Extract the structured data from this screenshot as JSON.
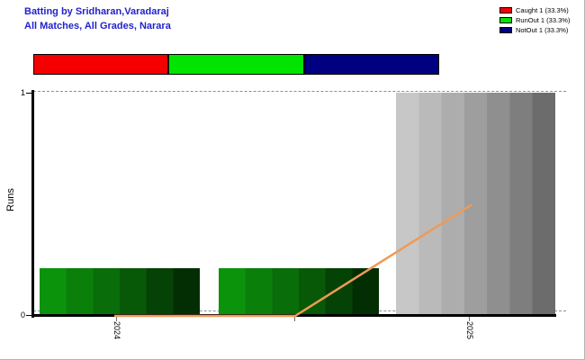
{
  "header": {
    "title_line1": "Batting by Sridharan,Varadaraj",
    "title_line2": "All Matches, All Grades, Narara",
    "title_color": "#2222cc"
  },
  "legend": {
    "items": [
      {
        "label": "Caught 1 (33.3%)",
        "color": "#f40000"
      },
      {
        "label": "RunOut 1 (33.3%)",
        "color": "#00e400"
      },
      {
        "label": "NotOut 1 (33.3%)",
        "color": "#000080"
      }
    ]
  },
  "dismissal_bar": {
    "segments": [
      {
        "name": "Caught",
        "color": "#f40000",
        "fraction": 0.333
      },
      {
        "name": "RunOut",
        "color": "#00e400",
        "fraction": 0.333
      },
      {
        "name": "NotOut",
        "color": "#000080",
        "fraction": 0.333
      }
    ]
  },
  "chart_data": {
    "type": "bar",
    "title": "Batting by Sridharan,Varadaraj",
    "subtitle": "All Matches, All Grades, Narara",
    "ylabel": "Runs",
    "ylim": [
      0,
      1
    ],
    "yticks": {
      "top": "1",
      "bottom": "0"
    },
    "grid": "dashed horizontal at 0 and 1",
    "legend_position": "top-right",
    "xticks": [
      {
        "label": "2024"
      },
      {
        "label": ""
      },
      {
        "label": "2025"
      }
    ],
    "bars": [
      {
        "tick": "2024",
        "value": 0.21,
        "palette": "green"
      },
      {
        "tick": "",
        "value": 0.21,
        "palette": "green"
      },
      {
        "tick": "2025",
        "value": 1.0,
        "palette": "gray"
      }
    ],
    "line": {
      "name": "runs-trend-line",
      "color": "#ef9a56",
      "points": [
        {
          "tick": "2024",
          "value": 0
        },
        {
          "tick": "",
          "value": 0
        },
        {
          "tick": "2025",
          "value": 0.5
        }
      ]
    },
    "palettes": {
      "green": [
        "#0c930c",
        "#0a800a",
        "#096d09",
        "#075907",
        "#054205",
        "#032e03"
      ],
      "gray": [
        "#c7c7c7",
        "#bababa",
        "#adadad",
        "#9e9e9e",
        "#8f8f8f",
        "#7e7e7e",
        "#6c6c6c"
      ]
    }
  }
}
